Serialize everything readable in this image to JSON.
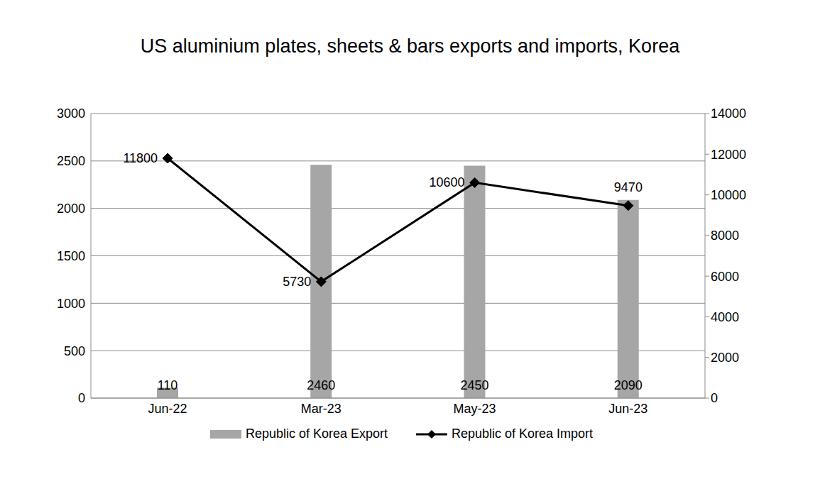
{
  "chart_data": {
    "type": "bar",
    "title": "US aluminium plates, sheets & bars exports and imports, Korea",
    "categories": [
      "Jun-22",
      "Mar-23",
      "May-23",
      "Jun-23"
    ],
    "series": [
      {
        "name": "Republic of Korea Export",
        "type": "bar",
        "color": "#a6a6a6",
        "values": [
          110,
          2460,
          2450,
          2090
        ]
      },
      {
        "name": "Republic of Korea Import",
        "type": "line",
        "axis": "y2",
        "color": "#000000",
        "marker": "diamond",
        "values": [
          11800,
          5730,
          10600,
          9470
        ]
      }
    ],
    "ylim": [
      0,
      3000
    ],
    "yticks": [
      0,
      500,
      1000,
      1500,
      2000,
      2500,
      3000
    ],
    "y2lim": [
      0,
      14000
    ],
    "y2ticks": [
      0,
      2000,
      4000,
      6000,
      8000,
      10000,
      12000,
      14000
    ],
    "grid": true,
    "legend": "bottom",
    "data_labels": true
  }
}
